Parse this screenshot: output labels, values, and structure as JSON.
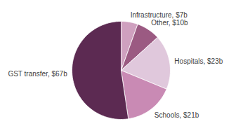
{
  "chart_data": {
    "type": "pie",
    "categories": [
      "Infrastructure, $7b",
      "Other, $10b",
      "Hospitals, $23b",
      "Schools, $21b",
      "GST transfer, $67b"
    ],
    "values": [
      7,
      10,
      23,
      21,
      67
    ],
    "colors": [
      "#cfa0bf",
      "#9b5a82",
      "#e0c8dc",
      "#c98ab4",
      "#5c2a52"
    ]
  }
}
